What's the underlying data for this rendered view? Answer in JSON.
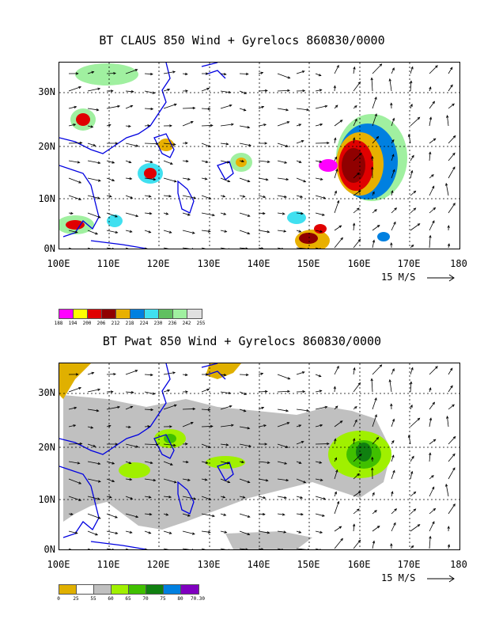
{
  "panels": [
    {
      "title": "BT CLAUS 850 Wind + Gyrelocs 860830/0000",
      "lat_labels": [
        "30N",
        "20N",
        "10N",
        "0N"
      ],
      "lon_labels": [
        "100E",
        "110E",
        "120E",
        "130E",
        "140E",
        "150E",
        "160E",
        "170E",
        "180"
      ],
      "scale_label": "15 M/S",
      "legend": {
        "labels": [
          "188",
          "194",
          "200",
          "206",
          "212",
          "218",
          "224",
          "230",
          "236",
          "242",
          "255"
        ],
        "colors": [
          "#ff00ff",
          "#ffff00",
          "#e00000",
          "#900000",
          "#e8b000",
          "#0080e0",
          "#40e0f0",
          "#60c060",
          "#a0f0a0",
          "#e0e0e0"
        ]
      }
    },
    {
      "title": "BT Pwat 850 Wind + Gyrelocs 860830/0000",
      "lat_labels": [
        "30N",
        "20N",
        "10N",
        "0N"
      ],
      "lon_labels": [
        "100E",
        "110E",
        "120E",
        "130E",
        "140E",
        "150E",
        "160E",
        "170E",
        "180"
      ],
      "scale_label": "15 M/S",
      "legend": {
        "labels": [
          "0",
          "25",
          "55",
          "60",
          "65",
          "70",
          "75",
          "80",
          "70.30"
        ],
        "colors": [
          "#e0b000",
          "#ffffff",
          "#c0c0c0",
          "#a0f000",
          "#40c000",
          "#108010",
          "#0080e0",
          "#8000c0"
        ]
      }
    }
  ]
}
